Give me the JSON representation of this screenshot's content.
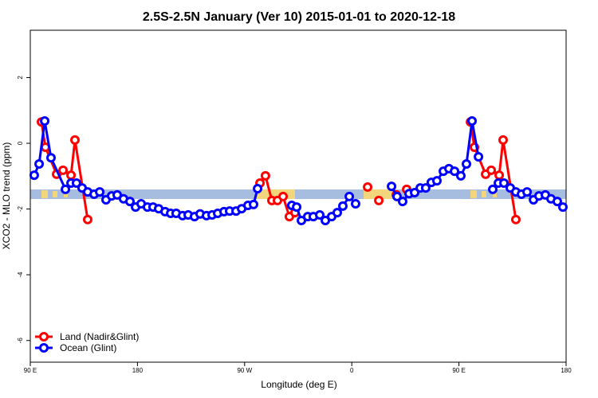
{
  "chart_data": {
    "type": "line",
    "title": "2.5S-2.5N January (Ver 10)   2015-01-01 to 2020-12-18",
    "x_label": "Longitude (deg E)",
    "y_label": "XCO2 - MLO trend (ppm)",
    "xlim": [
      90,
      540
    ],
    "ylim": [
      -6.66,
      3.44
    ],
    "xticks": [
      {
        "value": 90,
        "label": "90 E"
      },
      180,
      {
        "value": 270,
        "label": "90 W"
      },
      {
        "value": 360,
        "label": "0"
      },
      {
        "value": 450,
        "label": "90 E"
      },
      180
    ],
    "yticks": [
      -6,
      -4,
      -2,
      0,
      2
    ],
    "legend": "bottom-left",
    "series": [
      {
        "name": "Land (Nadir&Glint)",
        "color": "#ff0000",
        "x": [
          99.4,
          102.7,
          112.1,
          117.5,
          124.2,
          127.5,
          138.2,
          null,
          282.9,
          287.5,
          292.9,
          297.6,
          302.3,
          307.6,
          312.3,
          null,
          373.3,
          null,
          382.7,
          null,
          397.4,
          null,
          406.1,
          null,
          459.7,
          463,
          472.4,
          477.1,
          483.8,
          487.1,
          497.8
        ],
        "values": [
          0.65,
          -0.12,
          -0.94,
          -0.82,
          -0.97,
          0.1,
          -2.32,
          null,
          -1.21,
          -0.99,
          -1.74,
          -1.74,
          -1.62,
          -2.23,
          -2.11,
          null,
          -1.33,
          null,
          -1.74,
          null,
          -1.57,
          null,
          -1.4,
          null,
          0.65,
          -0.12,
          -0.94,
          -0.82,
          -0.97,
          0.1,
          -2.32
        ]
      },
      {
        "name": "Ocean (Glint)",
        "color": "#0000ff",
        "x": [
          93.3,
          97.4,
          102.1,
          107.4,
          119.5,
          124.2,
          128.8,
          133.5,
          138.2,
          143.6,
          148.3,
          153.6,
          158.3,
          163,
          168.3,
          173.7,
          178.4,
          183.1,
          188.4,
          193.1,
          197.8,
          203.2,
          207.9,
          212.5,
          217.9,
          222.6,
          227.9,
          232.6,
          238,
          242.7,
          247.4,
          252.7,
          257.4,
          262.8,
          267.5,
          272.8,
          277.5,
          280.9,
          null,
          309.6,
          313.7,
          317.7,
          323,
          327.7,
          333.1,
          337.8,
          343.1,
          347.8,
          352.5,
          357.9,
          363.2,
          null,
          393.4,
          398,
          402.7,
          408.1,
          412.8,
          417.5,
          422.1,
          426.8,
          431.5,
          436.9,
          441.6,
          446.3,
          451.6,
          456.3,
          461,
          466.4,
          null,
          478.4,
          483.1,
          487.8,
          493.1,
          497.8,
          502.5,
          507.2,
          512.6,
          517.2,
          522.6,
          527.3,
          532.6,
          537.3
        ],
        "values": [
          -0.97,
          -0.63,
          0.68,
          -0.44,
          -1.4,
          -1.21,
          -1.21,
          -1.36,
          -1.48,
          -1.55,
          -1.48,
          -1.72,
          -1.6,
          -1.57,
          -1.69,
          -1.77,
          -1.94,
          -1.84,
          -1.94,
          -1.94,
          -1.99,
          -2.08,
          -2.13,
          -2.13,
          -2.2,
          -2.18,
          -2.23,
          -2.15,
          -2.2,
          -2.18,
          -2.13,
          -2.08,
          -2.06,
          -2.06,
          -1.99,
          -1.89,
          -1.86,
          -1.38,
          null,
          -1.89,
          -1.94,
          -2.35,
          -2.23,
          -2.23,
          -2.18,
          -2.35,
          -2.23,
          -2.11,
          -1.91,
          -1.62,
          -1.84,
          null,
          -1.31,
          -1.62,
          -1.77,
          -1.53,
          -1.5,
          -1.36,
          -1.36,
          -1.19,
          -1.14,
          -0.85,
          -0.77,
          -0.85,
          -0.99,
          -0.63,
          0.68,
          -0.41,
          null,
          -1.4,
          -1.21,
          -1.21,
          -1.36,
          -1.48,
          -1.55,
          -1.48,
          -1.72,
          -1.6,
          -1.57,
          -1.69,
          -1.77,
          -1.94
        ]
      }
    ]
  }
}
